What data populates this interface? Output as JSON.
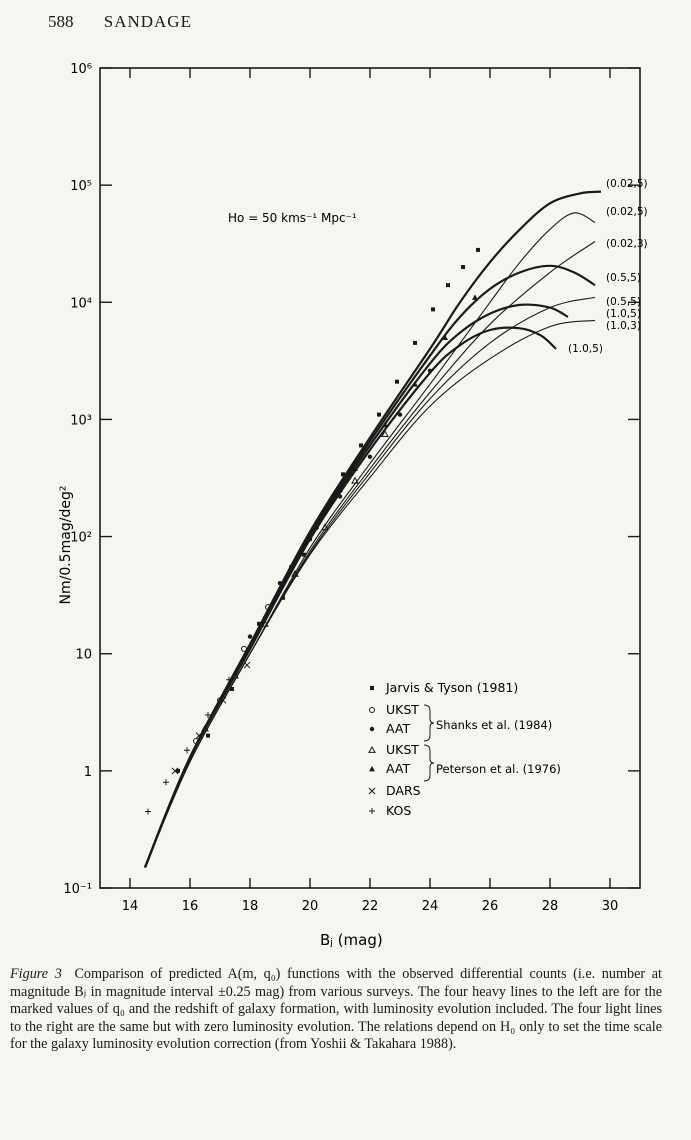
{
  "page": {
    "number": "588",
    "running_head": "SANDAGE"
  },
  "chart_data": {
    "type": "line",
    "xlabel": "Bⱼ (mag)",
    "ylabel": "Nm/0.5mag/deg²",
    "xlim": [
      13,
      31
    ],
    "ylim": [
      0.1,
      1000000
    ],
    "log_y": true,
    "x_ticks": [
      14,
      16,
      18,
      20,
      22,
      24,
      26,
      28,
      30
    ],
    "x_tick_labels": [
      "14",
      "16",
      "18",
      "20",
      "22",
      "24",
      "26",
      "28",
      "30"
    ],
    "y_ticks": [
      0.1,
      1,
      10,
      100,
      1000,
      10000,
      100000,
      1000000
    ],
    "y_tick_labels": [
      "10⁻¹",
      "1",
      "10",
      "10²",
      "10³",
      "10⁴",
      "10⁵",
      "10⁶"
    ],
    "annotation": "Ho = 50 kms⁻¹ Mpc⁻¹",
    "grid": false,
    "curves": [
      {
        "label": "(0.02,5)",
        "style": "heavy",
        "x": [
          14.5,
          16,
          18,
          20,
          22,
          24,
          25,
          26,
          27,
          28,
          29,
          29.7
        ],
        "y": [
          0.15,
          1.3,
          12,
          110,
          700,
          4000,
          10000,
          22000,
          42000,
          70000,
          85000,
          88000
        ]
      },
      {
        "label": "(0.5,5)",
        "style": "heavy",
        "x": [
          14.5,
          16,
          18,
          20,
          22,
          24,
          25,
          26,
          27,
          28,
          28.8,
          29.5
        ],
        "y": [
          0.15,
          1.3,
          12,
          105,
          650,
          3500,
          7500,
          13000,
          18000,
          20500,
          18000,
          14000
        ]
      },
      {
        "label": "(1.0,5)",
        "style": "heavy",
        "x": [
          14.5,
          16,
          18,
          20,
          22,
          24,
          25,
          26,
          27,
          28,
          28.6
        ],
        "y": [
          0.15,
          1.3,
          11,
          100,
          600,
          3000,
          5500,
          8000,
          9500,
          9000,
          7500
        ]
      },
      {
        "label": "(1.0,5)",
        "style": "heavy",
        "x": [
          14.5,
          16,
          18,
          20,
          22,
          24,
          25,
          26,
          27,
          27.7,
          28.2
        ],
        "y": [
          0.15,
          1.3,
          11,
          95,
          550,
          2500,
          4300,
          5800,
          6000,
          5200,
          4000
        ]
      },
      {
        "label": "(0.02,5)",
        "style": "light",
        "x": [
          14.5,
          16,
          18,
          20,
          22,
          24,
          26,
          27,
          28,
          28.8,
          29.5
        ],
        "y": [
          0.15,
          1.2,
          10,
          80,
          420,
          2000,
          10000,
          22000,
          42000,
          58000,
          48000
        ]
      },
      {
        "label": "(0.02,3)",
        "style": "light",
        "x": [
          14.5,
          16,
          18,
          20,
          22,
          24,
          26,
          28,
          29.5
        ],
        "y": [
          0.15,
          1.2,
          10,
          75,
          380,
          1700,
          6500,
          18000,
          33000
        ]
      },
      {
        "label": "(0.5,5)",
        "style": "light",
        "x": [
          14.5,
          16,
          18,
          20,
          22,
          24,
          26,
          28,
          29.5
        ],
        "y": [
          0.15,
          1.2,
          10,
          72,
          350,
          1500,
          4500,
          9000,
          11000
        ]
      },
      {
        "label": "(1.0,3)",
        "style": "light",
        "x": [
          14.5,
          16,
          18,
          20,
          22,
          24,
          26,
          28,
          29.5
        ],
        "y": [
          0.15,
          1.2,
          10,
          70,
          320,
          1300,
          3300,
          6200,
          7000
        ]
      }
    ],
    "labels_right": [
      "(0.02,5)",
      "(0.02,5)",
      "(0.02,3)",
      "(0.5,5)",
      "(0.5,5)",
      "(1.0,5)",
      "(1.0,3)"
    ],
    "label_inner": "(1.0,5)",
    "observations": [
      {
        "name": "Jarvis & Tyson (1981)",
        "marker": "square",
        "x": [
          15.6,
          16.6,
          17.4,
          18.3,
          19.1,
          19.8,
          20.5,
          21.1,
          21.7,
          22.3,
          22.9,
          23.5,
          24.1,
          24.6,
          25.1,
          25.6
        ],
        "y": [
          1,
          2,
          5,
          18,
          30,
          70,
          170,
          340,
          600,
          1100,
          2100,
          4500,
          8700,
          14000,
          20000,
          28000
        ]
      },
      {
        "name": "UKST",
        "marker": "open-circle",
        "x": [
          16.2,
          17,
          17.8,
          18.6,
          19.4,
          20.2,
          21
        ],
        "y": [
          1.8,
          4,
          11,
          25,
          55,
          120,
          250
        ]
      },
      {
        "name": "AAT",
        "marker": "dot",
        "x": [
          18,
          19,
          20,
          21,
          22,
          23,
          24
        ],
        "y": [
          14,
          40,
          95,
          220,
          480,
          1100,
          2600
        ]
      },
      {
        "name": "UKST",
        "marker": "open-triangle",
        "x": [
          16.5,
          17.5,
          18.5,
          19.5,
          20.5,
          21.5,
          22.5
        ],
        "y": [
          2.3,
          6.5,
          18,
          48,
          120,
          300,
          750
        ]
      },
      {
        "name": "AAT",
        "marker": "triangle",
        "x": [
          21.5,
          22.5,
          23.5,
          24.5,
          25.5
        ],
        "y": [
          380,
          900,
          2000,
          5000,
          11000
        ]
      },
      {
        "name": "DARS",
        "marker": "cross",
        "x": [
          15.5,
          16.3,
          17.1,
          17.9
        ],
        "y": [
          1,
          2,
          4,
          8
        ]
      },
      {
        "name": "KOS",
        "marker": "plus",
        "x": [
          14.6,
          15.2,
          15.9,
          16.6,
          17.3
        ],
        "y": [
          0.45,
          0.8,
          1.5,
          3,
          6
        ]
      }
    ],
    "legend": {
      "placement": "bottom-right",
      "items": [
        "Jarvis & Tyson (1981)",
        "UKST",
        "AAT",
        "UKST",
        "AAT",
        "DARS",
        "KOS"
      ],
      "group_labels": [
        "Shanks et al. (1984)",
        "Peterson et al. (1976)"
      ]
    }
  },
  "caption": {
    "lead": "Figure 3",
    "text": "Comparison of predicted A(m, q₀) functions with the observed differential counts (i.e. number at magnitude Bⱼ in magnitude interval ±0.25 mag) from various surveys. The four heavy lines to the left are for the marked values of q₀ and the redshift of galaxy formation, with luminosity evolution included. The four light lines to the right are the same but with zero luminosity evolution. The relations depend on H₀ only to set the time scale for the galaxy luminosity evolution correction (from Yoshii & Takahara 1988)."
  }
}
